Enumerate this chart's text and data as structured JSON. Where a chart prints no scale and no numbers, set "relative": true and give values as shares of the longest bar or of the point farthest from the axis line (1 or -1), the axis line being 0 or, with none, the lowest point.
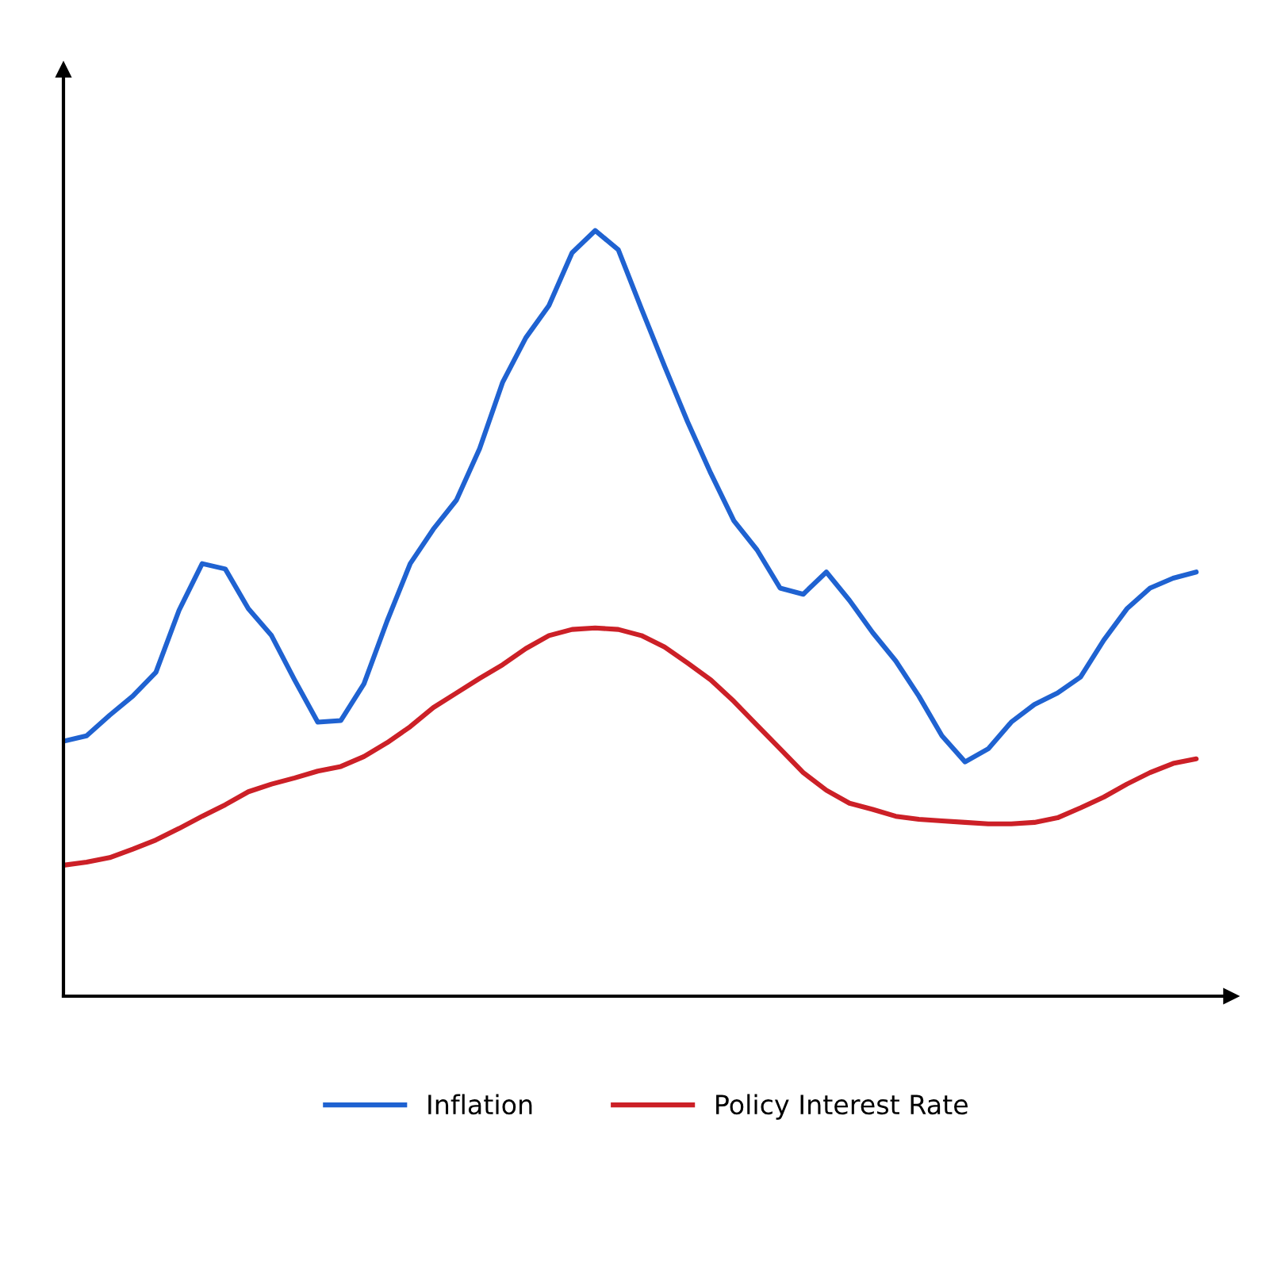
{
  "chart_data": {
    "type": "line",
    "relative": true,
    "legend": "bottom",
    "grid": false,
    "categories": [
      null,
      null,
      null,
      null,
      null,
      null,
      null,
      null,
      null,
      null,
      null,
      null,
      null,
      null,
      null,
      null,
      null,
      null,
      null,
      null,
      null,
      null,
      null,
      null,
      null,
      null,
      null,
      null,
      null,
      null,
      null,
      null,
      null,
      null,
      null,
      null,
      null,
      null,
      null,
      null,
      null,
      null,
      null,
      null,
      null,
      null,
      null,
      null,
      null,
      null
    ],
    "series": [
      {
        "name": "Inflation",
        "color": "#1f62d1",
        "values": [
          0.333,
          0.34,
          0.367,
          0.392,
          0.423,
          0.504,
          0.565,
          0.558,
          0.506,
          0.471,
          0.413,
          0.358,
          0.36,
          0.408,
          0.49,
          0.565,
          0.61,
          0.648,
          0.715,
          0.802,
          0.86,
          0.902,
          0.971,
          1,
          0.975,
          0.898,
          0.823,
          0.75,
          0.683,
          0.621,
          0.583,
          0.533,
          0.525,
          0.554,
          0.517,
          0.475,
          0.438,
          0.392,
          0.34,
          0.306,
          0.323,
          0.358,
          0.381,
          0.396,
          0.417,
          0.465,
          0.506,
          0.533,
          0.546,
          0.554
        ]
      },
      {
        "name": "Policy Interest Rate",
        "color": "#cc2027",
        "values": [
          0.171,
          0.175,
          0.181,
          0.192,
          0.204,
          0.219,
          0.235,
          0.25,
          0.267,
          0.277,
          0.285,
          0.294,
          0.3,
          0.313,
          0.331,
          0.352,
          0.377,
          0.396,
          0.415,
          0.433,
          0.454,
          0.471,
          0.479,
          0.481,
          0.479,
          0.471,
          0.456,
          0.435,
          0.413,
          0.385,
          0.354,
          0.323,
          0.292,
          0.269,
          0.252,
          0.244,
          0.235,
          0.231,
          0.229,
          0.227,
          0.225,
          0.225,
          0.227,
          0.233,
          0.246,
          0.26,
          0.277,
          0.292,
          0.304,
          0.31
        ]
      }
    ]
  }
}
